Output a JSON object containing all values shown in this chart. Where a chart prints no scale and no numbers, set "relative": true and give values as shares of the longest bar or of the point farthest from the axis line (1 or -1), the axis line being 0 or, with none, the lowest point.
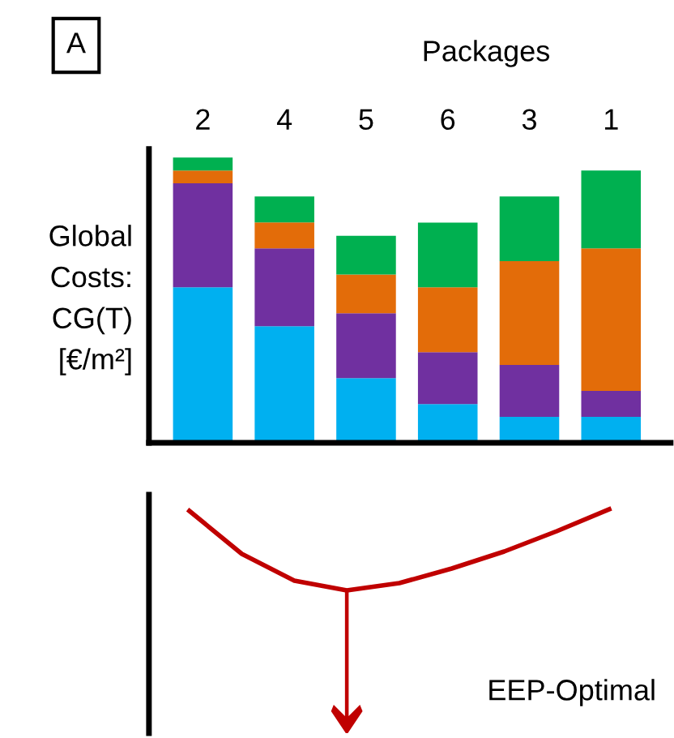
{
  "chart_data": [
    {
      "type": "bar",
      "stacked": true,
      "relative": true,
      "title": "Packages",
      "ylabel": "Global\nCosts:\nCG(T)\n[€/m²]",
      "categories": [
        "2",
        "4",
        "5",
        "6",
        "3",
        "1"
      ],
      "series": [
        {
          "color": "#00b0f0",
          "values": [
            0.545,
            0.409,
            0.227,
            0.136,
            0.091,
            0.091
          ]
        },
        {
          "color": "#7030a0",
          "values": [
            0.365,
            0.273,
            0.227,
            0.182,
            0.182,
            0.091
          ]
        },
        {
          "color": "#e36c09",
          "values": [
            0.045,
            0.091,
            0.136,
            0.227,
            0.364,
            0.5
          ]
        },
        {
          "color": "#00b050",
          "values": [
            0.045,
            0.091,
            0.136,
            0.227,
            0.227,
            0.273
          ]
        }
      ],
      "annotations": [
        "A"
      ]
    },
    {
      "type": "line",
      "relative": true,
      "categories": [
        null,
        null,
        null,
        null,
        null,
        null,
        null,
        null,
        null
      ],
      "series": [
        {
          "color": "#c00000",
          "values": [
            0.98,
            0.45,
            0.12,
            0,
            0.09,
            0.27,
            0.48,
            0.73,
            1
          ]
        }
      ],
      "annotations": [
        "EEP-Optimal"
      ]
    }
  ]
}
